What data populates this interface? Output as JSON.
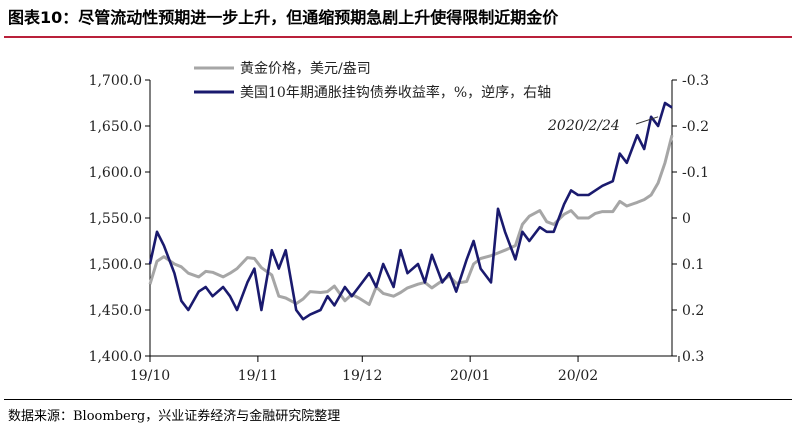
{
  "header": {
    "title": "图表10：尽管流动性预期进一步上升，但通缩预期急剧上升使得限制近期金价"
  },
  "footer": {
    "source": "数据来源：Bloomberg，兴业证券经济与金融研究院整理"
  },
  "colors": {
    "title_rule": "#b9203a",
    "gold": "#a6a6a6",
    "yield": "#1a1a6e"
  },
  "chart_data": {
    "type": "line",
    "title": "",
    "x_tick_labels": [
      "19/10",
      "19/11",
      "19/12",
      "20/01",
      "20/02"
    ],
    "x_range": [
      "2019-10-01",
      "2020-02-28"
    ],
    "y_left": {
      "ticks": [
        "1,400.0",
        "1,450.0",
        "1,500.0",
        "1,550.0",
        "1,600.0",
        "1,650.0",
        "1,700.0"
      ],
      "range": [
        1400,
        1700
      ]
    },
    "y_right": {
      "ticks": [
        "0.3",
        "0.2",
        "0.1",
        "0",
        "-0.1",
        "-0.2",
        "-0.3"
      ],
      "range": [
        -0.3,
        0.3
      ],
      "inverted": true
    },
    "grid": false,
    "legend_position": "top",
    "annotation": {
      "text": "2020/2/24",
      "date": "2020-02-24"
    },
    "series": [
      {
        "name": "黄金价格，美元/盎司",
        "axis": "left",
        "color": "#a6a6a6",
        "x": [
          "2019-10-01",
          "2019-10-03",
          "2019-10-05",
          "2019-10-08",
          "2019-10-10",
          "2019-10-12",
          "2019-10-15",
          "2019-10-17",
          "2019-10-19",
          "2019-10-22",
          "2019-10-24",
          "2019-10-26",
          "2019-10-29",
          "2019-10-31",
          "2019-11-02",
          "2019-11-05",
          "2019-11-07",
          "2019-11-09",
          "2019-11-12",
          "2019-11-14",
          "2019-11-16",
          "2019-11-19",
          "2019-11-21",
          "2019-11-23",
          "2019-11-26",
          "2019-11-28",
          "2019-11-30",
          "2019-12-03",
          "2019-12-05",
          "2019-12-07",
          "2019-12-10",
          "2019-12-12",
          "2019-12-14",
          "2019-12-17",
          "2019-12-19",
          "2019-12-21",
          "2019-12-24",
          "2019-12-26",
          "2019-12-28",
          "2019-12-31",
          "2020-01-02",
          "2020-01-04",
          "2020-01-07",
          "2020-01-09",
          "2020-01-11",
          "2020-01-14",
          "2020-01-16",
          "2020-01-18",
          "2020-01-21",
          "2020-01-23",
          "2020-01-25",
          "2020-01-28",
          "2020-01-30",
          "2020-02-01",
          "2020-02-04",
          "2020-02-06",
          "2020-02-08",
          "2020-02-11",
          "2020-02-13",
          "2020-02-15",
          "2020-02-18",
          "2020-02-20",
          "2020-02-22",
          "2020-02-24",
          "2020-02-26",
          "2020-02-28"
        ],
        "values": [
          1478,
          1503,
          1508,
          1500,
          1497,
          1490,
          1486,
          1492,
          1491,
          1486,
          1490,
          1495,
          1507,
          1506,
          1496,
          1488,
          1465,
          1463,
          1457,
          1462,
          1470,
          1469,
          1470,
          1476,
          1460,
          1467,
          1463,
          1456,
          1475,
          1468,
          1465,
          1469,
          1474,
          1478,
          1480,
          1474,
          1482,
          1487,
          1479,
          1481,
          1500,
          1506,
          1509,
          1512,
          1515,
          1520,
          1543,
          1552,
          1558,
          1546,
          1543,
          1554,
          1558,
          1550,
          1550,
          1555,
          1557,
          1557,
          1568,
          1563,
          1567,
          1570,
          1575,
          1588,
          1610,
          1640
        ]
      },
      {
        "name": "美国10年期通胀挂钩债券收益率，%，逆序，右轴",
        "axis": "right",
        "color": "#1a1a6e",
        "x": [
          "2019-10-01",
          "2019-10-03",
          "2019-10-05",
          "2019-10-08",
          "2019-10-10",
          "2019-10-12",
          "2019-10-15",
          "2019-10-17",
          "2019-10-19",
          "2019-10-22",
          "2019-10-24",
          "2019-10-26",
          "2019-10-29",
          "2019-10-31",
          "2019-11-02",
          "2019-11-05",
          "2019-11-07",
          "2019-11-09",
          "2019-11-12",
          "2019-11-14",
          "2019-11-16",
          "2019-11-19",
          "2019-11-21",
          "2019-11-23",
          "2019-11-26",
          "2019-11-28",
          "2019-11-30",
          "2019-12-03",
          "2019-12-05",
          "2019-12-07",
          "2019-12-10",
          "2019-12-12",
          "2019-12-14",
          "2019-12-17",
          "2019-12-19",
          "2019-12-21",
          "2019-12-24",
          "2019-12-26",
          "2019-12-28",
          "2019-12-31",
          "2020-01-02",
          "2020-01-04",
          "2020-01-07",
          "2020-01-09",
          "2020-01-11",
          "2020-01-14",
          "2020-01-16",
          "2020-01-18",
          "2020-01-21",
          "2020-01-23",
          "2020-01-25",
          "2020-01-28",
          "2020-01-30",
          "2020-02-01",
          "2020-02-04",
          "2020-02-06",
          "2020-02-08",
          "2020-02-11",
          "2020-02-13",
          "2020-02-15",
          "2020-02-18",
          "2020-02-20",
          "2020-02-22",
          "2020-02-24",
          "2020-02-26",
          "2020-02-28"
        ],
        "values": [
          0.1,
          0.03,
          0.06,
          0.12,
          0.18,
          0.2,
          0.16,
          0.15,
          0.17,
          0.15,
          0.17,
          0.2,
          0.14,
          0.11,
          0.2,
          0.07,
          0.11,
          0.07,
          0.2,
          0.22,
          0.21,
          0.2,
          0.17,
          0.19,
          0.15,
          0.17,
          0.15,
          0.12,
          0.15,
          0.1,
          0.15,
          0.07,
          0.12,
          0.1,
          0.14,
          0.08,
          0.14,
          0.12,
          0.16,
          0.09,
          0.05,
          0.11,
          0.14,
          -0.02,
          0.03,
          0.09,
          0.03,
          0.05,
          0.02,
          0.03,
          0.03,
          -0.03,
          -0.06,
          -0.05,
          -0.05,
          -0.06,
          -0.07,
          -0.08,
          -0.14,
          -0.12,
          -0.18,
          -0.15,
          -0.22,
          -0.2,
          -0.25,
          -0.24
        ]
      }
    ]
  }
}
